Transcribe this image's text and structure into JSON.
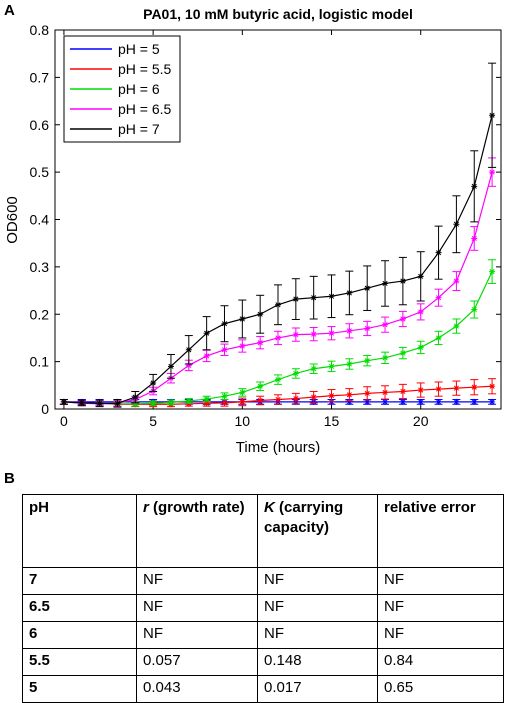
{
  "panel_a_label": "A",
  "panel_b_label": "B",
  "chart_data": {
    "type": "line",
    "title": "PA01, 10 mM butyric acid, logistic model",
    "xlabel": "Time (hours)",
    "ylabel": "OD600",
    "xlim": [
      -0.5,
      24.5
    ],
    "ylim": [
      0,
      0.8
    ],
    "xticks": [
      0,
      5,
      10,
      15,
      20
    ],
    "yticks": [
      0,
      0.1,
      0.2,
      0.3,
      0.4,
      0.5,
      0.6,
      0.7,
      0.8
    ],
    "x": [
      0,
      1,
      2,
      3,
      4,
      5,
      6,
      7,
      8,
      9,
      10,
      11,
      12,
      13,
      14,
      15,
      16,
      17,
      18,
      19,
      20,
      21,
      22,
      23,
      24
    ],
    "legend_position": "top-left",
    "grid": false,
    "series": [
      {
        "name": "pH = 5",
        "color": "#0000ff",
        "values": [
          0.015,
          0.015,
          0.015,
          0.015,
          0.015,
          0.015,
          0.015,
          0.015,
          0.015,
          0.015,
          0.015,
          0.015,
          0.015,
          0.015,
          0.015,
          0.015,
          0.015,
          0.015,
          0.015,
          0.015,
          0.015,
          0.015,
          0.015,
          0.015,
          0.015
        ],
        "errors": [
          0.005,
          0.005,
          0.005,
          0.005,
          0.005,
          0.005,
          0.005,
          0.005,
          0.005,
          0.005,
          0.005,
          0.005,
          0.005,
          0.005,
          0.005,
          0.005,
          0.005,
          0.005,
          0.005,
          0.005,
          0.005,
          0.005,
          0.005,
          0.005,
          0.005
        ]
      },
      {
        "name": "pH = 5.5",
        "color": "#ff0000",
        "values": [
          0.015,
          0.013,
          0.012,
          0.01,
          0.01,
          0.01,
          0.01,
          0.011,
          0.012,
          0.013,
          0.015,
          0.018,
          0.02,
          0.022,
          0.025,
          0.028,
          0.03,
          0.033,
          0.035,
          0.037,
          0.04,
          0.042,
          0.044,
          0.046,
          0.048
        ],
        "errors": [
          0.005,
          0.005,
          0.005,
          0.005,
          0.005,
          0.005,
          0.005,
          0.005,
          0.006,
          0.007,
          0.008,
          0.009,
          0.01,
          0.011,
          0.012,
          0.013,
          0.013,
          0.014,
          0.014,
          0.015,
          0.015,
          0.015,
          0.015,
          0.016,
          0.016
        ]
      },
      {
        "name": "pH = 6",
        "color": "#00dd00",
        "values": [
          0.015,
          0.013,
          0.012,
          0.011,
          0.011,
          0.012,
          0.014,
          0.017,
          0.021,
          0.027,
          0.035,
          0.048,
          0.062,
          0.075,
          0.085,
          0.09,
          0.095,
          0.102,
          0.108,
          0.118,
          0.13,
          0.15,
          0.175,
          0.21,
          0.29
        ],
        "errors": [
          0.005,
          0.005,
          0.005,
          0.005,
          0.005,
          0.005,
          0.005,
          0.005,
          0.006,
          0.007,
          0.008,
          0.009,
          0.01,
          0.01,
          0.01,
          0.011,
          0.011,
          0.011,
          0.012,
          0.012,
          0.013,
          0.014,
          0.015,
          0.018,
          0.025
        ]
      },
      {
        "name": "pH = 6.5",
        "color": "#ff00ff",
        "values": [
          0.015,
          0.012,
          0.011,
          0.012,
          0.02,
          0.038,
          0.065,
          0.092,
          0.112,
          0.125,
          0.133,
          0.14,
          0.15,
          0.157,
          0.158,
          0.16,
          0.165,
          0.17,
          0.178,
          0.19,
          0.205,
          0.235,
          0.27,
          0.36,
          0.5
        ],
        "errors": [
          0.005,
          0.005,
          0.005,
          0.006,
          0.007,
          0.008,
          0.01,
          0.011,
          0.012,
          0.012,
          0.013,
          0.013,
          0.014,
          0.014,
          0.014,
          0.014,
          0.015,
          0.015,
          0.016,
          0.016,
          0.017,
          0.018,
          0.02,
          0.025,
          0.03
        ]
      },
      {
        "name": "pH = 7",
        "color": "#000000",
        "values": [
          0.015,
          0.013,
          0.012,
          0.012,
          0.025,
          0.055,
          0.09,
          0.125,
          0.16,
          0.18,
          0.19,
          0.2,
          0.22,
          0.232,
          0.235,
          0.238,
          0.245,
          0.255,
          0.265,
          0.27,
          0.28,
          0.33,
          0.39,
          0.47,
          0.62
        ],
        "errors": [
          0.005,
          0.006,
          0.007,
          0.008,
          0.012,
          0.018,
          0.025,
          0.03,
          0.035,
          0.038,
          0.04,
          0.04,
          0.042,
          0.043,
          0.045,
          0.045,
          0.046,
          0.047,
          0.048,
          0.05,
          0.052,
          0.056,
          0.06,
          0.075,
          0.11
        ]
      }
    ]
  },
  "table": {
    "headers": [
      {
        "main": "pH",
        "extra": ""
      },
      {
        "main": "r",
        "extra": " (growth rate)"
      },
      {
        "main": "K",
        "extra": " (carrying capacity)"
      },
      {
        "main": "relative",
        "extra": " error"
      }
    ],
    "rows": [
      [
        "7",
        "NF",
        "NF",
        "NF"
      ],
      [
        "6.5",
        "NF",
        "NF",
        "NF"
      ],
      [
        "6",
        "NF",
        "NF",
        "NF"
      ],
      [
        "5.5",
        "0.057",
        "0.148",
        "0.84"
      ],
      [
        "5",
        "0.043",
        "0.017",
        "0.65"
      ]
    ]
  }
}
